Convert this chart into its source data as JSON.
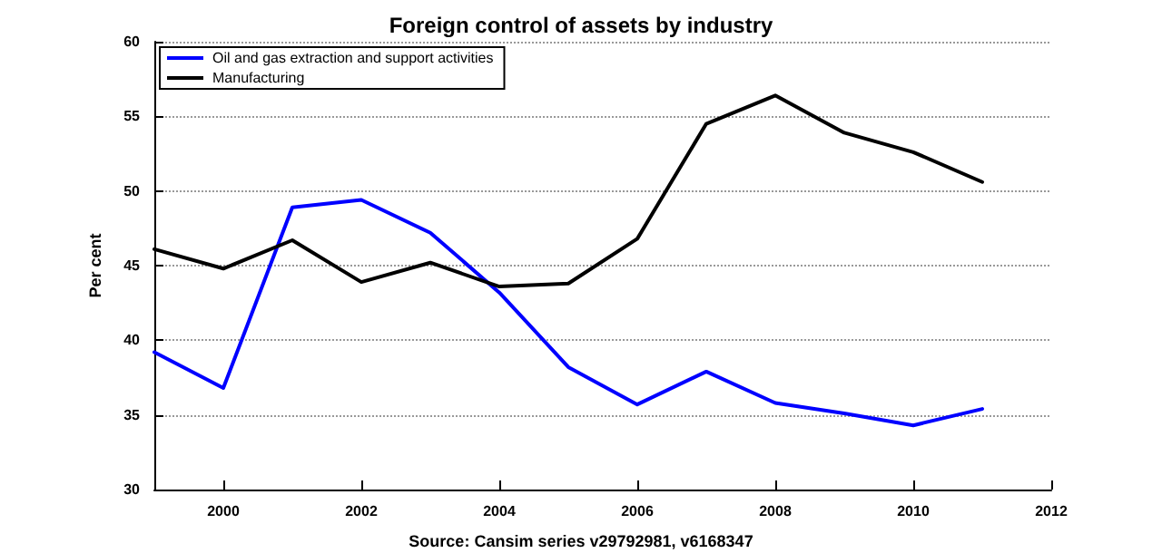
{
  "chart_data": {
    "type": "line",
    "title": "Foreign control of assets by industry",
    "ylabel": "Per cent",
    "annotations": [
      "Source: Cansim series v29792981, v6168347"
    ],
    "x": [
      1999,
      2000,
      2001,
      2002,
      2003,
      2004,
      2005,
      2006,
      2007,
      2008,
      2009,
      2010,
      2011
    ],
    "series": [
      {
        "name": "Oil and gas extraction and support activities",
        "color": "#0000ff",
        "values": [
          39.2,
          36.8,
          48.9,
          49.4,
          47.2,
          43.2,
          38.2,
          35.7,
          37.9,
          35.8,
          35.1,
          34.3,
          35.4
        ]
      },
      {
        "name": "Manufacturing",
        "color": "#000000",
        "values": [
          46.1,
          44.8,
          46.7,
          43.9,
          45.2,
          43.6,
          43.8,
          46.8,
          54.5,
          56.4,
          53.9,
          52.6,
          50.6
        ]
      }
    ],
    "xlim": [
      1999,
      2012
    ],
    "xticks": [
      2000,
      2002,
      2004,
      2006,
      2008,
      2010,
      2012
    ],
    "ylim": [
      30,
      60
    ],
    "yticks": [
      30,
      35,
      40,
      45,
      50,
      55,
      60
    ],
    "grid": "y",
    "legend": "top left",
    "marker": "none",
    "line_style": "solid"
  }
}
